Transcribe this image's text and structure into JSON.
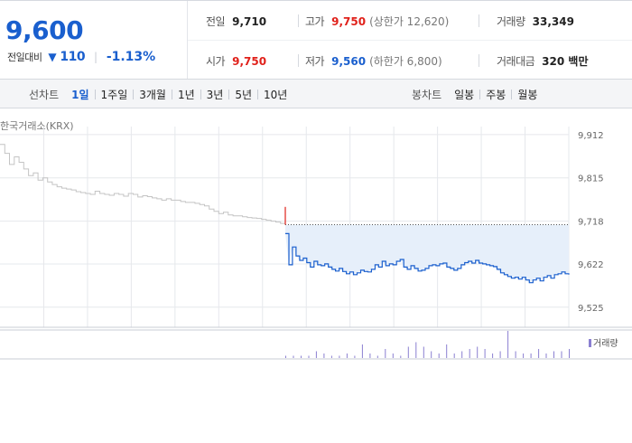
{
  "quote": {
    "price": "9,600",
    "change_label": "전일대비",
    "change_arrow": "▼",
    "change_amount": "110",
    "change_rate": "-1.13%",
    "stats": {
      "prev_close": {
        "label": "전일",
        "value": "9,710"
      },
      "high": {
        "label": "고가",
        "value": "9,750",
        "limit": "(상한가 12,620)"
      },
      "volume": {
        "label": "거래량",
        "value": "33,349"
      },
      "open": {
        "label": "시가",
        "value": "9,750"
      },
      "low": {
        "label": "저가",
        "value": "9,560",
        "limit": "(하한가 6,800)"
      },
      "amount": {
        "label": "거래대금",
        "value": "320 백만"
      }
    }
  },
  "toolbar": {
    "line_label": "선차트",
    "line_periods": [
      "1일",
      "1주일",
      "3개월",
      "1년",
      "3년",
      "5년",
      "10년"
    ],
    "active_period": "1일",
    "candle_label": "봉차트",
    "candle_periods": [
      "일봉",
      "주봉",
      "월봉"
    ]
  },
  "exchange": "한국거래소(KRX)",
  "colors": {
    "accent_blue": "#1a5fce",
    "up_red": "#e0211b",
    "fill": "#e6effa",
    "prior_gray": "#c4c4c4",
    "volume": "#8a7fd1"
  },
  "chart_data": {
    "type": "line",
    "ylim": [
      9480,
      9930
    ],
    "yticks": [
      "9,912",
      "9,815",
      "9,718",
      "9,622",
      "9,525"
    ],
    "ytick_values": [
      9912,
      9815,
      9718,
      9622,
      9525
    ],
    "baseline": 9710,
    "grid": true,
    "x_segments": 13,
    "volume_legend": "거래량",
    "series": [
      {
        "values": [
          9890,
          9870,
          9845,
          9862,
          9850,
          9835,
          9820,
          9826,
          9810,
          9815,
          9806,
          9800,
          9795,
          9792,
          9790,
          9788,
          9784,
          9782,
          9780,
          9778,
          9785,
          9780,
          9778,
          9776,
          9780,
          9778,
          9774,
          9780,
          9778,
          9772,
          9775,
          9773,
          9770,
          9768,
          9765,
          9768,
          9765,
          9765,
          9762,
          9760,
          9760,
          9758,
          9755,
          9752,
          9745,
          9740,
          9735,
          9738,
          9732,
          9730,
          9730,
          9728,
          9726,
          9725,
          9724,
          9722,
          9720,
          9718,
          9716,
          9713,
          9710
        ]
      },
      {
        "values": [
          9690,
          9620,
          9660,
          9640,
          9630,
          9635,
          9625,
          9615,
          9628,
          9620,
          9618,
          9622,
          9615,
          9610,
          9606,
          9612,
          9605,
          9600,
          9604,
          9598,
          9602,
          9608,
          9605,
          9604,
          9610,
          9620,
          9615,
          9628,
          9618,
          9622,
          9620,
          9628,
          9632,
          9615,
          9610,
          9618,
          9612,
          9606,
          9608,
          9612,
          9618,
          9620,
          9618,
          9622,
          9624,
          9615,
          9612,
          9608,
          9612,
          9620,
          9625,
          9628,
          9624,
          9630,
          9624,
          9622,
          9620,
          9618,
          9616,
          9610,
          9602,
          9598,
          9594,
          9590,
          9592,
          9588,
          9592,
          9586,
          9580,
          9586,
          9590,
          9584,
          9592,
          9596,
          9590,
          9598,
          9600,
          9604,
          9600,
          9598
        ]
      }
    ],
    "volume_values": [
      1,
      1,
      1,
      1,
      3,
      2,
      1,
      1,
      2,
      1,
      6,
      2,
      1,
      4,
      2,
      1,
      5,
      7,
      5,
      3,
      2,
      6,
      2,
      3,
      4,
      5,
      4,
      2,
      3,
      12,
      3,
      2,
      2,
      4,
      2,
      3,
      3,
      4
    ]
  }
}
